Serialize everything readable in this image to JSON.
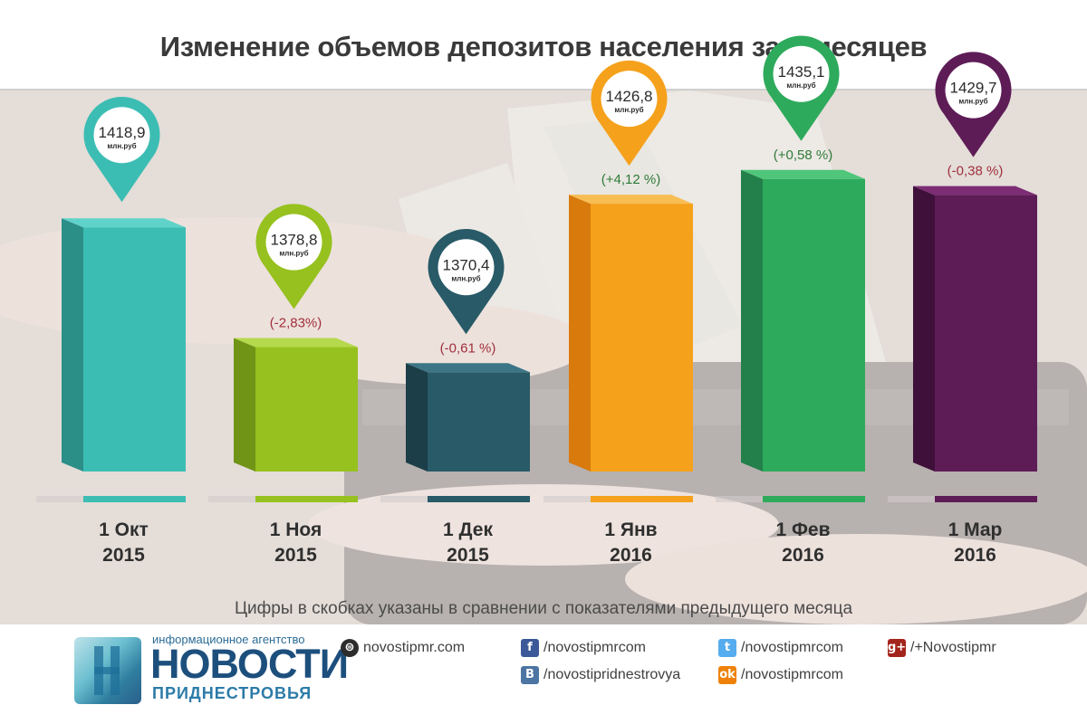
{
  "title": "Изменение объемов депозитов населения за 6 месяцев",
  "footnote": "Цифры в скобках указаны в сравнении с показателями предыдущего месяца",
  "chart_data": {
    "type": "bar",
    "unit_label": "млн.руб",
    "categories": [
      {
        "line1": "1 Окт",
        "line2": "2015"
      },
      {
        "line1": "1 Ноя",
        "line2": "2015"
      },
      {
        "line1": "1 Дек",
        "line2": "2015"
      },
      {
        "line1": "1 Янв",
        "line2": "2016"
      },
      {
        "line1": "1 Фев",
        "line2": "2016"
      },
      {
        "line1": "1 Мар",
        "line2": "2016"
      }
    ],
    "values": [
      1418.9,
      1378.8,
      1370.4,
      1426.8,
      1435.1,
      1429.7
    ],
    "value_labels": [
      "1418,9",
      "1378,8",
      "1370,4",
      "1426,8",
      "1435,1",
      "1429,7"
    ],
    "change_labels": [
      "",
      "(-2,83%)",
      "(-0,61 %)",
      "(+4,12 %)",
      "(+0,58 %)",
      "(-0,38 %)"
    ],
    "change_colors": [
      "",
      "#a0303c",
      "#a0303c",
      "#2f7a3a",
      "#2f7a3a",
      "#a0303c"
    ],
    "colors": {
      "front": [
        "#3cbdb3",
        "#96c11f",
        "#285a67",
        "#f5a11b",
        "#2eaa5c",
        "#5e1c57"
      ],
      "side": [
        "#2b8f88",
        "#6f9416",
        "#1c3e48",
        "#d87a0c",
        "#23804a",
        "#3f103a"
      ],
      "top": [
        "#5fd3ca",
        "#b5d94c",
        "#3c7686",
        "#f8bd53",
        "#4fc67a",
        "#7c2d74"
      ]
    }
  },
  "footer": {
    "logo_small": "информационное агентство",
    "logo_big": "НОВОСТИ",
    "logo_sub": "ПРИДНЕСТРОВЬЯ",
    "website": "novostipmr.com",
    "facebook": "/novostipmrcom",
    "vk": "/novostipridnestrovya",
    "twitter": "/novostipmrcom",
    "odnoklassniki": "/novostipmrcom",
    "googleplus": "/+Novostipmr",
    "icons": [
      "globe-icon",
      "facebook-icon",
      "vk-icon",
      "twitter-icon",
      "odnoklassniki-icon",
      "googleplus-icon"
    ]
  }
}
